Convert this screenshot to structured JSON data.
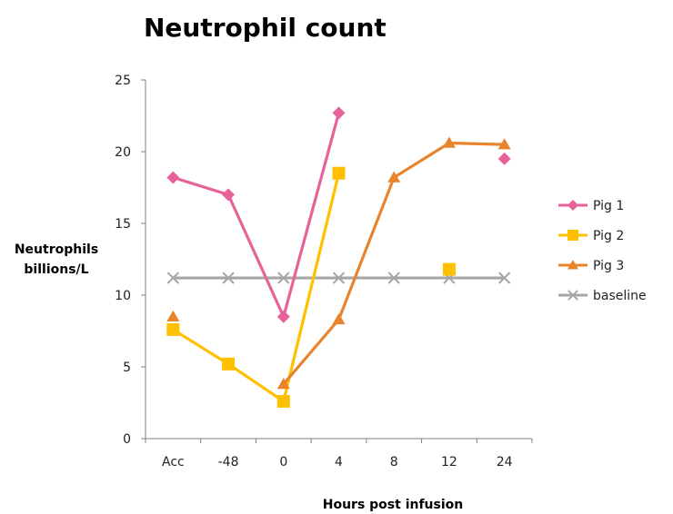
{
  "chart_data": {
    "type": "line",
    "title": "Neutrophil count",
    "xlabel": "Hours post infusion",
    "ylabel": [
      "Neutrophils",
      "billions/L"
    ],
    "categories": [
      "Acc",
      "-48",
      "0",
      "4",
      "8",
      "12",
      "24"
    ],
    "ylim": [
      0,
      25
    ],
    "yticks": [
      "0",
      "5",
      "10",
      "15",
      "20",
      "25"
    ],
    "grid": false,
    "legend_position": "right",
    "series": [
      {
        "name": "Pig 1",
        "color": "#E8629A",
        "marker": "diamond",
        "values": [
          18.2,
          17.0,
          8.5,
          22.7,
          null,
          null,
          19.5
        ]
      },
      {
        "name": "Pig 2",
        "color": "#FFC000",
        "marker": "square",
        "values": [
          7.6,
          5.2,
          2.6,
          18.5,
          null,
          11.8,
          null
        ]
      },
      {
        "name": "Pig 3",
        "color": "#E8842C",
        "marker": "triangle",
        "values": [
          8.5,
          null,
          3.8,
          8.3,
          18.2,
          20.6,
          20.5
        ]
      },
      {
        "name": "baseline",
        "color": "#A6A6A6",
        "marker": "x",
        "values": [
          11.2,
          11.2,
          11.2,
          11.2,
          11.2,
          11.2,
          11.2
        ]
      }
    ]
  }
}
